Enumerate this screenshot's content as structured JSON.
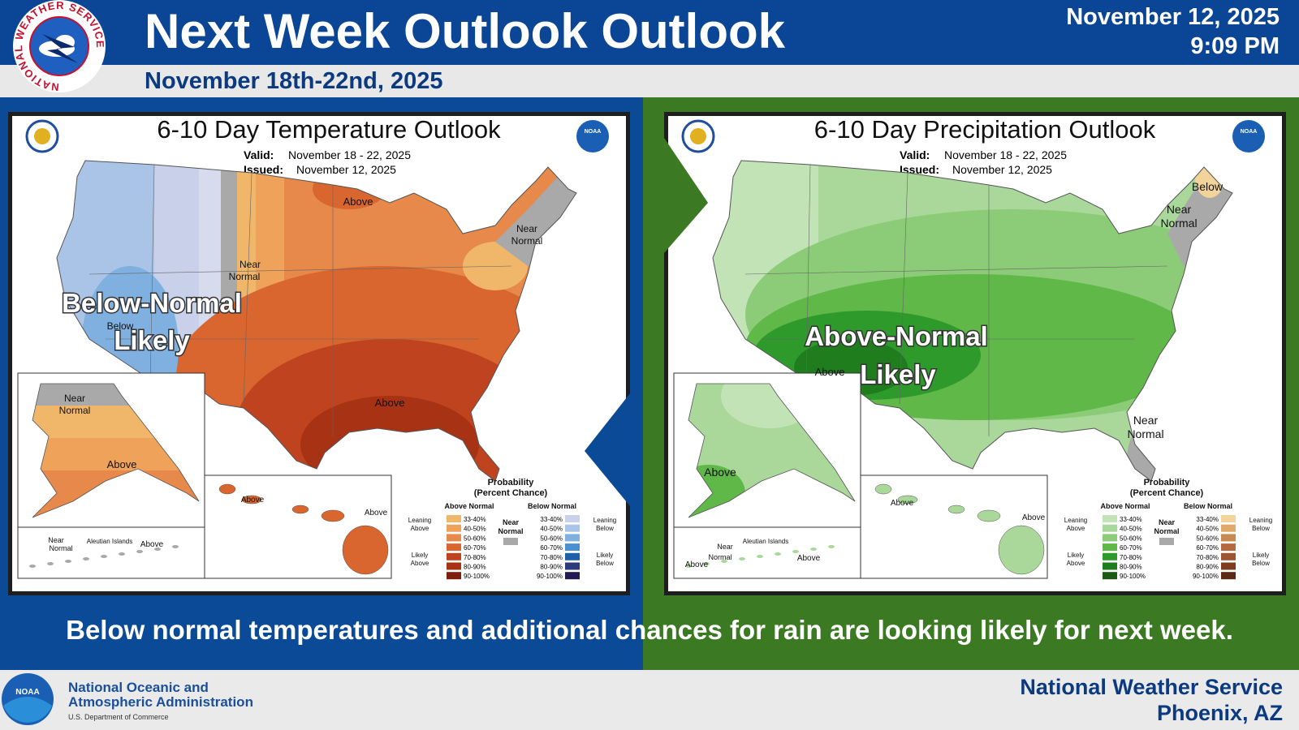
{
  "header": {
    "logo_text": "NATIONAL WEATHER SERVICE",
    "title": "Next Week Outlook Outlook",
    "subtitle": "November 18th-22nd, 2025",
    "date": "November 12, 2025",
    "time": "9:09 PM"
  },
  "panels": [
    {
      "title": "6-10 Day Temperature Outlook",
      "valid_label": "Valid:",
      "valid": "November 18 - 22, 2025",
      "issued_label": "Issued:",
      "issued": "November 12, 2025",
      "headline": [
        "Below-Normal",
        "Likely"
      ],
      "map_labels": [
        "Above",
        "Near",
        "Normal",
        "Near",
        "Normal",
        "Below",
        "Above",
        "Near",
        "Normal",
        "Above",
        "Above",
        "Above",
        "Near",
        "Normal",
        "Aleutian Islands",
        "Above"
      ],
      "legend": {
        "title": [
          "Probability",
          "(Percent Chance)"
        ],
        "above_normal": "Above Normal",
        "below_normal": "Below Normal",
        "near_normal": [
          "Near",
          "Normal"
        ],
        "ranges": [
          "33-40%",
          "40-50%",
          "50-60%",
          "60-70%",
          "70-80%",
          "80-90%",
          "90-100%"
        ],
        "leaning_above": [
          "Leaning",
          "Above"
        ],
        "likely_above": [
          "Likely",
          "Above"
        ],
        "leaning_below": [
          "Leaning",
          "Below"
        ],
        "likely_below": [
          "Likely",
          "Below"
        ],
        "above_colors": [
          "#f0b66a",
          "#eea25a",
          "#e6894a",
          "#d9652f",
          "#c0431f",
          "#a83214",
          "#7e1d0b"
        ],
        "below_colors": [
          "#c9d1ea",
          "#a9c4e6",
          "#7fb0e0",
          "#4a90d0",
          "#1d5fa8",
          "#2b3a7a",
          "#241a52"
        ],
        "near_color": "#a9a9a9"
      }
    },
    {
      "title": "6-10 Day Precipitation Outlook",
      "valid_label": "Valid:",
      "valid": "November 18 - 22, 2025",
      "issued_label": "Issued:",
      "issued": "November 12, 2025",
      "headline": [
        "Above-Normal",
        "Likely"
      ],
      "map_labels": [
        "Below",
        "Near",
        "Normal",
        "Above",
        "Near",
        "Normal",
        "Above",
        "Above",
        "Above",
        "Near",
        "Normal",
        "Aleutian Islands",
        "Above",
        "Above"
      ],
      "legend": {
        "title": [
          "Probability",
          "(Percent Chance)"
        ],
        "above_normal": "Above Normal",
        "below_normal": "Below Normal",
        "near_normal": [
          "Near",
          "Normal"
        ],
        "ranges": [
          "33-40%",
          "40-50%",
          "50-60%",
          "60-70%",
          "70-80%",
          "80-90%",
          "90-100%"
        ],
        "leaning_above": [
          "Leaning",
          "Above"
        ],
        "likely_above": [
          "Likely",
          "Above"
        ],
        "leaning_below": [
          "Leaning",
          "Below"
        ],
        "likely_below": [
          "Likely",
          "Below"
        ],
        "above_colors": [
          "#c2e3b6",
          "#a9d89a",
          "#8ccc78",
          "#5fb848",
          "#2f9a2c",
          "#1f7d1e",
          "#1a5a12"
        ],
        "below_colors": [
          "#f2d49a",
          "#e0a96a",
          "#c98a52",
          "#b46b3f",
          "#9c5530",
          "#7e3d1e",
          "#5a2a14"
        ],
        "near_color": "#a9a9a9"
      }
    }
  ],
  "caption": "Below normal temperatures and additional chances for rain are looking likely for next week.",
  "footer": {
    "noaa_logo": "NOAA",
    "agency": [
      "National Oceanic and",
      "Atmospheric Administration"
    ],
    "department": "U.S. Department of Commerce",
    "office": "National Weather Service",
    "location": "Phoenix, AZ"
  }
}
